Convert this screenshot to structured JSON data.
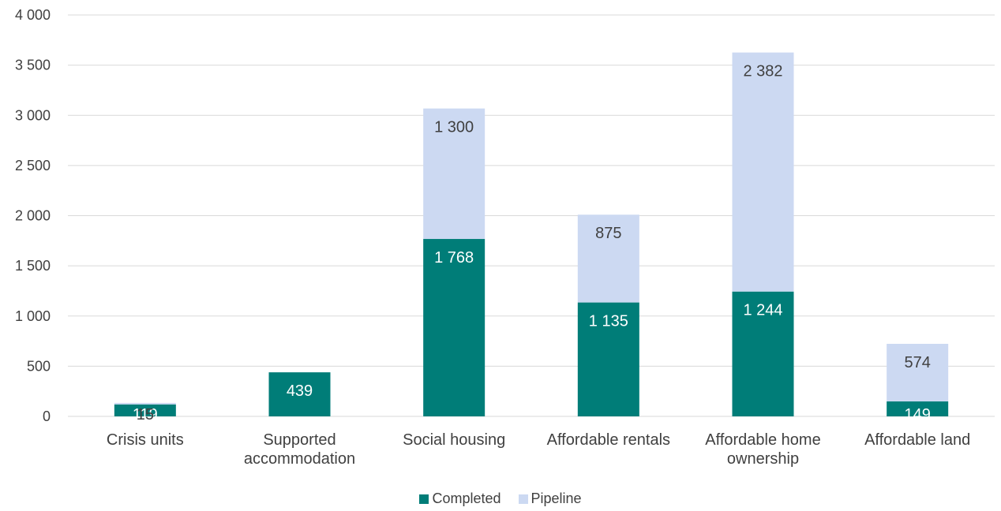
{
  "chart_data": {
    "type": "bar",
    "stacked": true,
    "categories": [
      [
        "Crisis units"
      ],
      [
        "Supported",
        "accommodation"
      ],
      [
        "Social housing"
      ],
      [
        "Affordable rentals"
      ],
      [
        "Affordable home",
        "ownership"
      ],
      [
        "Affordable land"
      ]
    ],
    "series": [
      {
        "name": "Completed",
        "color": "#007D78",
        "values": [
          119,
          439,
          1768,
          1135,
          1244,
          149
        ],
        "labels": [
          "119",
          "439",
          "1 768",
          "1 135",
          "1 244",
          "149"
        ],
        "label_color": "#ffffff"
      },
      {
        "name": "Pipeline",
        "color": "#CCD9F2",
        "values": [
          15,
          0,
          1300,
          875,
          2382,
          574
        ],
        "labels": [
          "15",
          "",
          "1 300",
          "875",
          "2 382",
          "574"
        ],
        "label_color": "#404040"
      }
    ],
    "ylim": [
      0,
      4000
    ],
    "yticks": [
      0,
      500,
      1000,
      1500,
      2000,
      2500,
      3000,
      3500,
      4000
    ],
    "ytick_labels": [
      "0",
      "500",
      "1 000",
      "1 500",
      "2 000",
      "2 500",
      "3 000",
      "3 500",
      "4 000"
    ],
    "grid": true,
    "legend_position": "bottom"
  }
}
